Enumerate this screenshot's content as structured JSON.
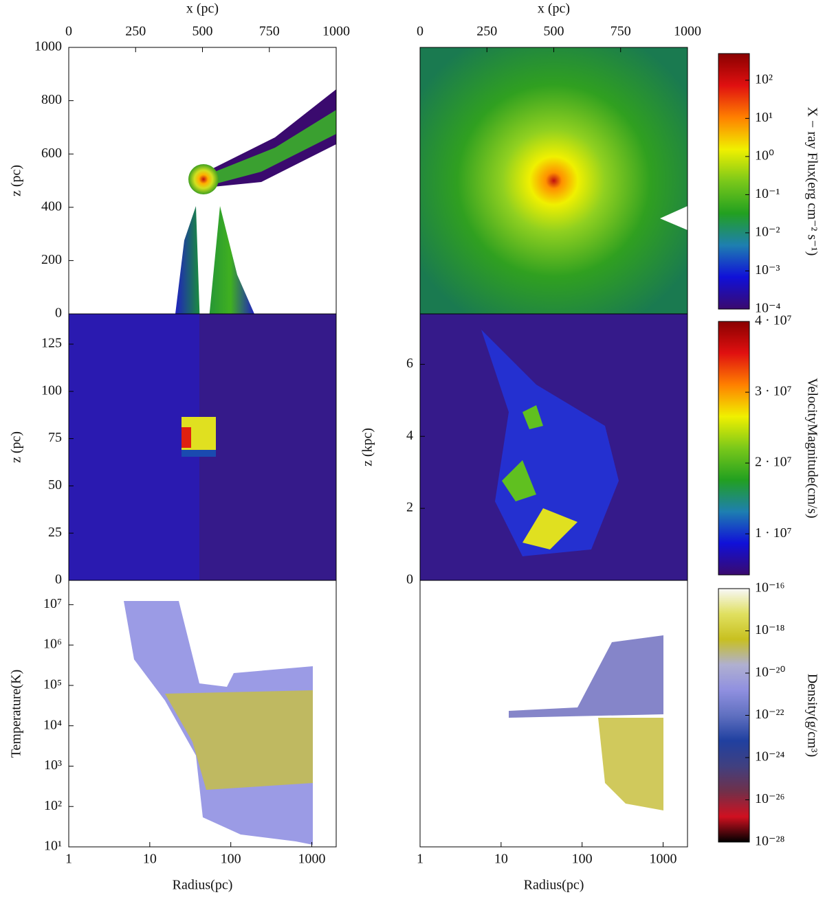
{
  "chart_data": [
    {
      "type": "heatmap",
      "xlabel": "x (pc)",
      "ylabel": "z (pc)",
      "xlim": [
        0,
        1000
      ],
      "xticks": [
        0,
        250,
        500,
        750,
        1000
      ],
      "ylim": [
        0,
        1000
      ],
      "yticks": [
        0,
        200,
        400,
        600,
        800,
        1000
      ]
    },
    {
      "type": "heatmap",
      "xlabel": "x (pc)",
      "xlim": [
        0,
        1000
      ],
      "xticks": [
        0,
        250,
        500,
        750,
        1000
      ]
    },
    {
      "type": "heatmap",
      "ylabel": "z (pc)",
      "ylim": [
        0,
        141
      ],
      "yticks": [
        0,
        25,
        50,
        75,
        100,
        125
      ]
    },
    {
      "type": "heatmap",
      "ylabel": "z (kpc)",
      "ylim": [
        0,
        7.4
      ],
      "yticks": [
        0,
        2,
        4,
        6
      ]
    },
    {
      "type": "heatmap",
      "xlabel": "Radius(pc)",
      "ylabel": "Temperature(K)",
      "log_x": true,
      "log_y": true,
      "xlim": [
        1,
        2000
      ],
      "xticks": [
        1,
        10,
        100,
        1000
      ],
      "ylim": [
        10,
        40000000
      ],
      "yticks": [
        {
          "value": 10,
          "label": "10¹"
        },
        {
          "value": 100,
          "label": "10²"
        },
        {
          "value": 1000,
          "label": "10³"
        },
        {
          "value": 10000,
          "label": "10⁴"
        },
        {
          "value": 100000,
          "label": "10⁵"
        },
        {
          "value": 1000000,
          "label": "10⁶"
        },
        {
          "value": 10000000,
          "label": "10⁷"
        }
      ]
    },
    {
      "type": "heatmap",
      "xlabel": "Radius(pc)",
      "log_x": true,
      "xlim": [
        1,
        2000
      ],
      "xticks": [
        1,
        10,
        100,
        1000
      ]
    },
    {
      "type": "colorbar",
      "label": "X − ray Flux(erg cm⁻² s⁻¹)",
      "log_y": true,
      "ylim": [
        0.0001,
        500
      ],
      "colors": [
        "#3a0a6e",
        "#1010d8",
        "#1e7fb0",
        "#22a020",
        "#7ac81a",
        "#f0f000",
        "#ff8000",
        "#e01010",
        "#8a0000"
      ],
      "yticks": [
        {
          "value": 0.0001,
          "label": "10⁻⁴"
        },
        {
          "value": 0.001,
          "label": "10⁻³"
        },
        {
          "value": 0.01,
          "label": "10⁻²"
        },
        {
          "value": 0.1,
          "label": "10⁻¹"
        },
        {
          "value": 1,
          "label": "10⁰"
        },
        {
          "value": 10,
          "label": "10¹"
        },
        {
          "value": 100,
          "label": "10²"
        }
      ]
    },
    {
      "type": "colorbar",
      "label": "VelocityMagnitude(cm/s)",
      "ylim": [
        4200000,
        40000000
      ],
      "colors": [
        "#3a0a6e",
        "#1010d8",
        "#1e7fb0",
        "#22a020",
        "#7ac81a",
        "#f0f000",
        "#ff8000",
        "#e01010",
        "#8a0000"
      ],
      "yticks": [
        {
          "value": 10000000,
          "label": "1 · 10⁷"
        },
        {
          "value": 20000000,
          "label": "2 · 10⁷"
        },
        {
          "value": 30000000,
          "label": "3 · 10⁷"
        },
        {
          "value": 40000000,
          "label": "4 · 10⁷"
        }
      ]
    },
    {
      "type": "colorbar",
      "label": "Density(g/cm³)",
      "log_y": true,
      "ylim": [
        1e-28,
        1e-16
      ],
      "colors": [
        "#000000",
        "#d01020",
        "#70304a",
        "#404080",
        "#2040a0",
        "#6070c0",
        "#9090e0",
        "#b0b0d0",
        "#c8c020",
        "#e0e060",
        "#f8f8f8"
      ],
      "yticks": [
        {
          "value": 1e-28,
          "label": "10⁻²⁸"
        },
        {
          "value": 1e-26,
          "label": "10⁻²⁶"
        },
        {
          "value": 1e-24,
          "label": "10⁻²⁴"
        },
        {
          "value": 1e-22,
          "label": "10⁻²²"
        },
        {
          "value": 1e-20,
          "label": "10⁻²⁰"
        },
        {
          "value": 1e-18,
          "label": "10⁻¹⁸"
        },
        {
          "value": 1e-16,
          "label": "10⁻¹⁶"
        }
      ]
    }
  ]
}
